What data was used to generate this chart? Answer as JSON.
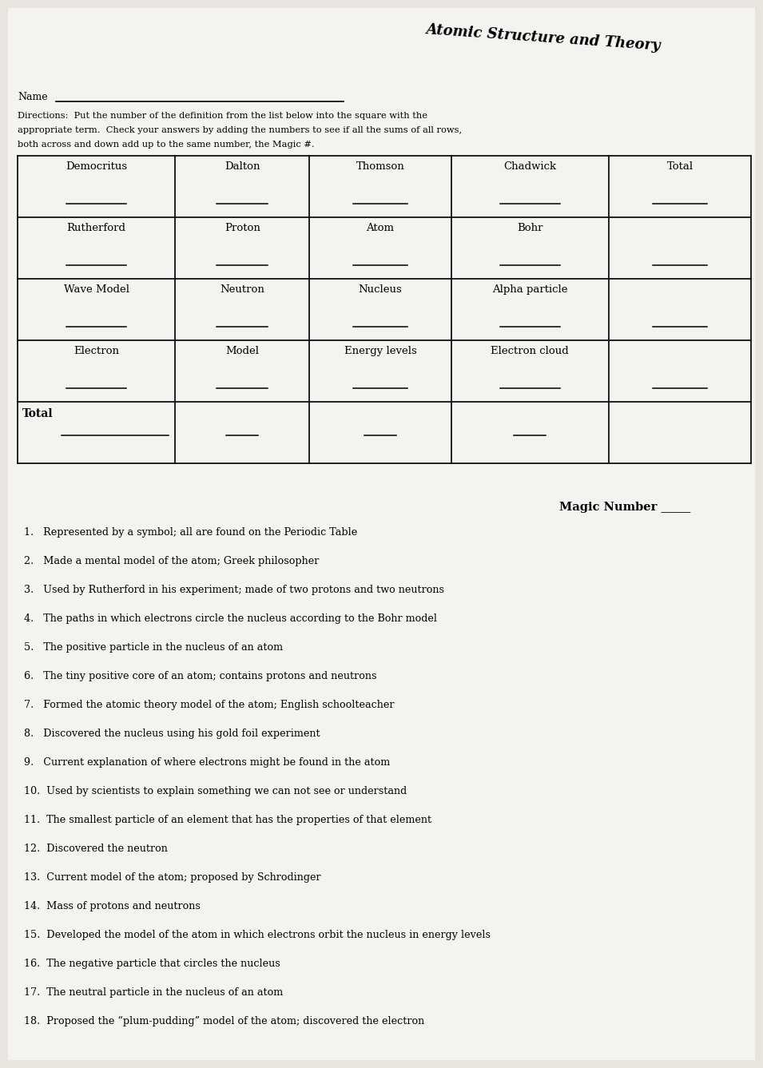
{
  "title": "Atomic Structure and Theory",
  "name_label": "Name",
  "directions_line1": "Directions:  Put the number of the definition from the list below into the square with the",
  "directions_line2": "appropriate term.  Check your answers by adding the numbers to see if all the sums of all rows,",
  "directions_line3": "both across and down add up to the same number, the Magic #.",
  "cell_labels": [
    [
      "Democritus",
      "Dalton",
      "Thomson",
      "Chadwick",
      "Total"
    ],
    [
      "Rutherford",
      "Proton",
      "Atom",
      "Bohr",
      ""
    ],
    [
      "Wave Model",
      "Neutron",
      "Nucleus",
      "Alpha particle",
      ""
    ],
    [
      "Electron",
      "Model",
      "Energy levels",
      "Electron cloud",
      ""
    ],
    [
      "Total",
      "",
      "",
      "",
      ""
    ]
  ],
  "magic_number_label": "Magic Number _____",
  "clues": [
    "1.   Represented by a symbol; all are found on the Periodic Table",
    "2.   Made a mental model of the atom; Greek philosopher",
    "3.   Used by Rutherford in his experiment; made of two protons and two neutrons",
    "4.   The paths in which electrons circle the nucleus according to the Bohr model",
    "5.   The positive particle in the nucleus of an atom",
    "6.   The tiny positive core of an atom; contains protons and neutrons",
    "7.   Formed the atomic theory model of the atom; English schoolteacher",
    "8.   Discovered the nucleus using his gold foil experiment",
    "9.   Current explanation of where electrons might be found in the atom",
    "10.  Used by scientists to explain something we can not see or understand",
    "11.  The smallest particle of an element that has the properties of that element",
    "12.  Discovered the neutron",
    "13.  Current model of the atom; proposed by Schrodinger",
    "14.  Mass of protons and neutrons",
    "15.  Developed the model of the atom in which electrons orbit the nucleus in energy levels",
    "16.  The negative particle that circles the nucleus",
    "17.  The neutral particle in the nucleus of an atom",
    "18.  Proposed the “plum-pudding” model of the atom; discovered the electron"
  ],
  "bg_color": "#e8e4de",
  "paper_color": "#f5f3ef",
  "line_color": "#111111"
}
